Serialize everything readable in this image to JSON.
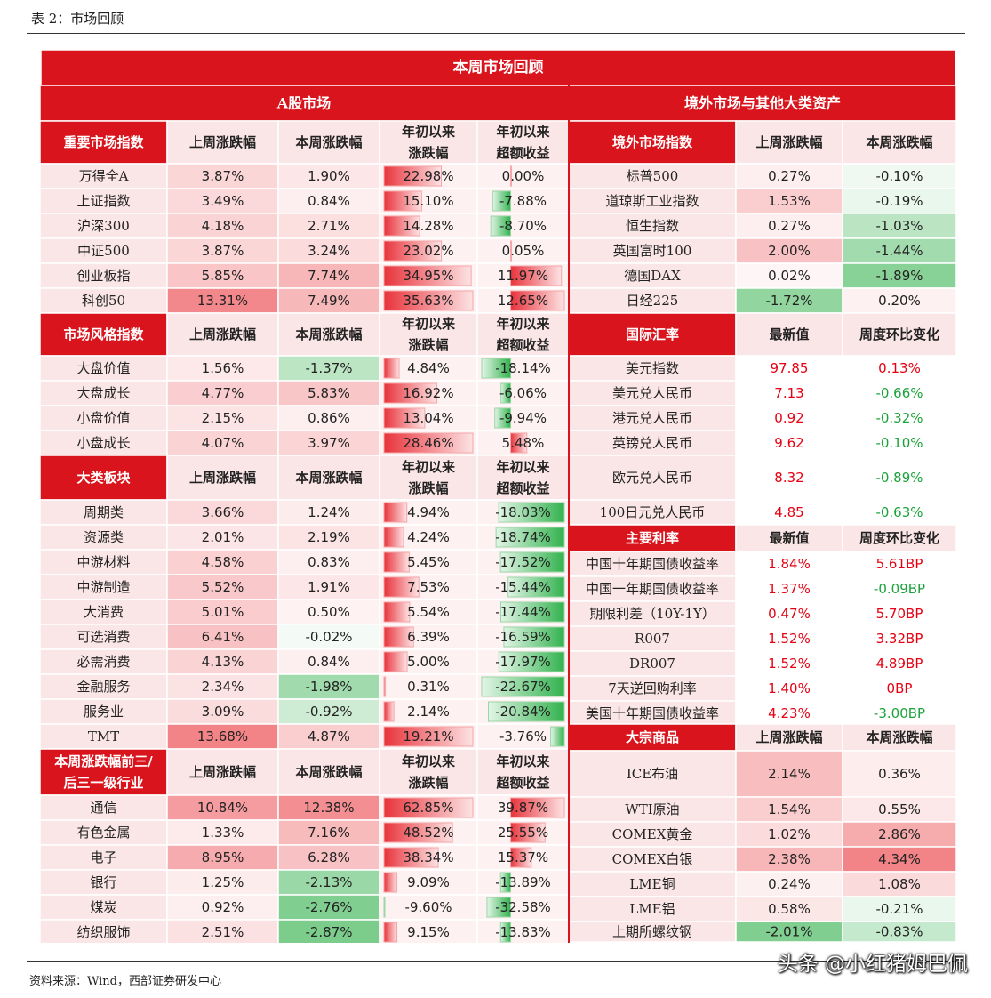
{
  "caption": "表 2：市场回顾",
  "title": "本周市场回顾",
  "source": "资料来源：Wind，西部证券研发中心",
  "watermark": "头条 @小红猪姆巴佩",
  "colors": {
    "red": "#d9141c",
    "up": "#ef6a6e",
    "down": "#5cc070",
    "red_text": "#e60012",
    "green_text": "#1aa33a"
  },
  "left": {
    "header": "A股市场",
    "sections": [
      {
        "name": "重要市场指数",
        "cols": [
          "上周涨跌幅",
          "本周涨跌幅",
          "年初以来\n涨跌幅",
          "年初以来\n超额收益"
        ],
        "rows": [
          [
            "万得全A",
            "3.87%",
            "1.90%",
            "22.98%",
            "0.00%"
          ],
          [
            "上证指数",
            "3.49%",
            "0.84%",
            "15.10%",
            "-7.88%"
          ],
          [
            "沪深300",
            "4.18%",
            "2.71%",
            "14.28%",
            "-8.70%"
          ],
          [
            "中证500",
            "3.87%",
            "3.24%",
            "23.02%",
            "0.05%"
          ],
          [
            "创业板指",
            "5.85%",
            "7.74%",
            "34.95%",
            "11.97%"
          ],
          [
            "科创50",
            "13.31%",
            "7.49%",
            "35.63%",
            "12.65%"
          ]
        ]
      },
      {
        "name": "市场风格指数",
        "cols": [
          "上周涨跌幅",
          "本周涨跌幅",
          "年初以来\n涨跌幅",
          "年初以来\n超额收益"
        ],
        "rows": [
          [
            "大盘价值",
            "1.56%",
            "-1.37%",
            "4.84%",
            "-18.14%"
          ],
          [
            "大盘成长",
            "4.77%",
            "5.83%",
            "16.92%",
            "-6.06%"
          ],
          [
            "小盘价值",
            "2.15%",
            "0.86%",
            "13.04%",
            "-9.94%"
          ],
          [
            "小盘成长",
            "4.07%",
            "3.97%",
            "28.46%",
            "5.48%"
          ]
        ]
      },
      {
        "name": "大类板块",
        "cols": [
          "上周涨跌幅",
          "本周涨跌幅",
          "年初以来\n涨跌幅",
          "年初以来\n超额收益"
        ],
        "rows": [
          [
            "周期类",
            "3.66%",
            "1.24%",
            "4.94%",
            "-18.03%"
          ],
          [
            "资源类",
            "2.01%",
            "2.19%",
            "4.24%",
            "-18.74%"
          ],
          [
            "中游材料",
            "4.58%",
            "0.83%",
            "5.45%",
            "-17.52%"
          ],
          [
            "中游制造",
            "5.52%",
            "1.91%",
            "7.53%",
            "-15.44%"
          ],
          [
            "大消费",
            "5.01%",
            "0.50%",
            "5.54%",
            "-17.44%"
          ],
          [
            "可选消费",
            "6.41%",
            "-0.02%",
            "6.39%",
            "-16.59%"
          ],
          [
            "必需消费",
            "4.13%",
            "0.84%",
            "5.00%",
            "-17.97%"
          ],
          [
            "金融服务",
            "2.34%",
            "-1.98%",
            "0.31%",
            "-22.67%"
          ],
          [
            "服务业",
            "3.09%",
            "-0.92%",
            "2.14%",
            "-20.84%"
          ],
          [
            "TMT",
            "13.68%",
            "4.87%",
            "19.21%",
            "-3.76%"
          ]
        ]
      },
      {
        "name": "本周涨跌幅前三/\n后三一级行业",
        "cols": [
          "上周涨跌幅",
          "本周涨跌幅",
          "年初以来\n涨跌幅",
          "年初以来\n超额收益"
        ],
        "rows": [
          [
            "通信",
            "10.84%",
            "12.38%",
            "62.85%",
            "39.87%"
          ],
          [
            "有色金属",
            "1.33%",
            "7.16%",
            "48.52%",
            "25.55%"
          ],
          [
            "电子",
            "8.95%",
            "6.28%",
            "38.34%",
            "15.37%"
          ],
          [
            "银行",
            "1.25%",
            "-2.13%",
            "9.09%",
            "-13.89%"
          ],
          [
            "煤炭",
            "0.92%",
            "-2.76%",
            "-9.60%",
            "-32.58%"
          ],
          [
            "纺织服饰",
            "2.51%",
            "-2.87%",
            "9.15%",
            "-13.83%"
          ]
        ]
      }
    ]
  },
  "right": {
    "header": "境外市场与其他大类资产",
    "sections": [
      {
        "name": "境外市场指数",
        "cols": [
          "上周涨跌幅",
          "本周涨跌幅"
        ],
        "rows": [
          [
            "标普500",
            "0.27%",
            "-0.10%"
          ],
          [
            "道琼斯工业指数",
            "1.53%",
            "-0.19%"
          ],
          [
            "恒生指数",
            "0.27%",
            "-1.03%"
          ],
          [
            "英国富时100",
            "2.00%",
            "-1.44%"
          ],
          [
            "德国DAX",
            "0.02%",
            "-1.89%"
          ],
          [
            "日经225",
            "-1.72%",
            "0.20%"
          ]
        ]
      },
      {
        "name": "国际汇率",
        "cols": [
          "最新值",
          "周度环比变化"
        ],
        "rows": [
          [
            "美元指数",
            "97.85",
            "0.13%"
          ],
          [
            "美元兑人民币",
            "7.13",
            "-0.66%"
          ],
          [
            "港元兑人民币",
            "0.92",
            "-0.32%"
          ],
          [
            "英镑兑人民币",
            "9.62",
            "-0.10%"
          ],
          [
            "欧元兑人民币",
            "8.32",
            "-0.89%"
          ],
          [
            "100日元兑人民币",
            "4.85",
            "-0.63%"
          ]
        ]
      },
      {
        "name": "主要利率",
        "cols": [
          "最新值",
          "周度环比变化"
        ],
        "rows": [
          [
            "中国十年期国债收益率",
            "1.84%",
            "5.61BP"
          ],
          [
            "中国一年期国债收益率",
            "1.37%",
            "-0.09BP"
          ],
          [
            "期限利差（10Y-1Y）",
            "0.47%",
            "5.70BP"
          ],
          [
            "R007",
            "1.52%",
            "3.32BP"
          ],
          [
            "DR007",
            "1.52%",
            "4.89BP"
          ],
          [
            "7天逆回购利率",
            "1.40%",
            "0BP"
          ],
          [
            "美国十年期国债收益率",
            "4.23%",
            "-3.00BP"
          ]
        ]
      },
      {
        "name": "大宗商品",
        "cols": [
          "上周涨跌幅",
          "本周涨跌幅"
        ],
        "rows": [
          [
            "ICE布油",
            "2.14%",
            "0.36%"
          ],
          [
            "WTI原油",
            "1.54%",
            "0.55%"
          ],
          [
            "COMEX黄金",
            "1.02%",
            "2.86%"
          ],
          [
            "COMEX白银",
            "2.38%",
            "4.34%"
          ],
          [
            "LME铜",
            "0.24%",
            "1.08%"
          ],
          [
            "LME铝",
            "0.58%",
            "-0.21%"
          ],
          [
            "上期所螺纹钢",
            "-2.01%",
            "-0.83%"
          ]
        ]
      }
    ]
  }
}
